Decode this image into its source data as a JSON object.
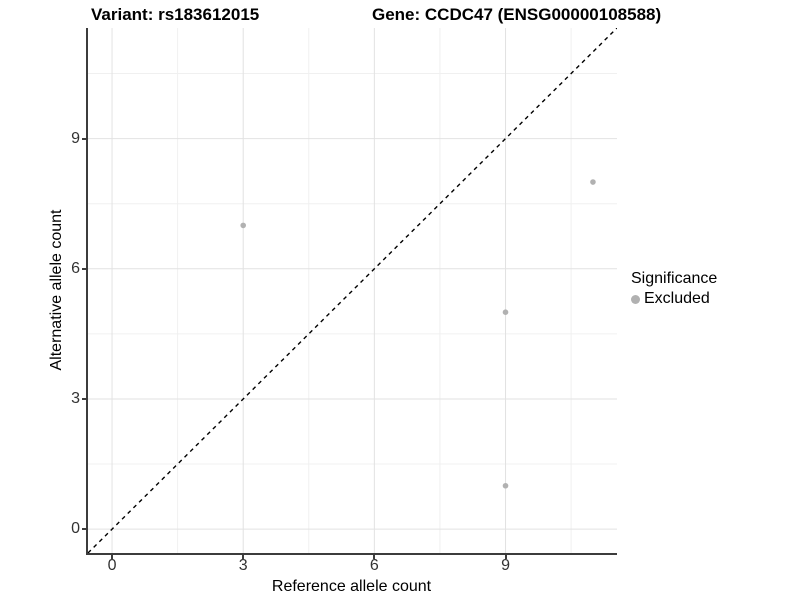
{
  "chart_data": {
    "type": "scatter",
    "title_left": "Variant: rs183612015",
    "title_right": "Gene: CCDC47 (ENSG00000108588)",
    "xlabel": "Reference allele count",
    "ylabel": "Alternative allele count",
    "xlim": [
      -0.55,
      11.55
    ],
    "ylim": [
      -0.55,
      11.55
    ],
    "x_ticks": [
      0,
      3,
      6,
      9
    ],
    "y_ticks": [
      0,
      3,
      6,
      9
    ],
    "x_minor_ticks": [
      1.5,
      4.5,
      7.5,
      10.5
    ],
    "y_minor_ticks": [
      1.5,
      4.5,
      7.5,
      10.5
    ],
    "grid": "major and minor, light gray on white",
    "series": [
      {
        "name": "Excluded",
        "color": "#b1b1b1",
        "marker_radius": 2.8,
        "points": [
          {
            "x": 3,
            "y": 7
          },
          {
            "x": 9,
            "y": 5
          },
          {
            "x": 9,
            "y": 1
          },
          {
            "x": 11,
            "y": 8
          }
        ]
      }
    ],
    "reference_line": {
      "kind": "identity y=x",
      "style": "dashed",
      "color": "#000000"
    },
    "legend": {
      "position": "right",
      "title": "Significance",
      "items": [
        {
          "label": "Excluded",
          "color": "#b1b1b1"
        }
      ]
    },
    "colors": {
      "grid_major": "#e2e2e2",
      "grid_minor": "#f0f0f0",
      "axis_line": "#3c3c3c",
      "tick_label": "#333333",
      "title": "#000000"
    }
  }
}
